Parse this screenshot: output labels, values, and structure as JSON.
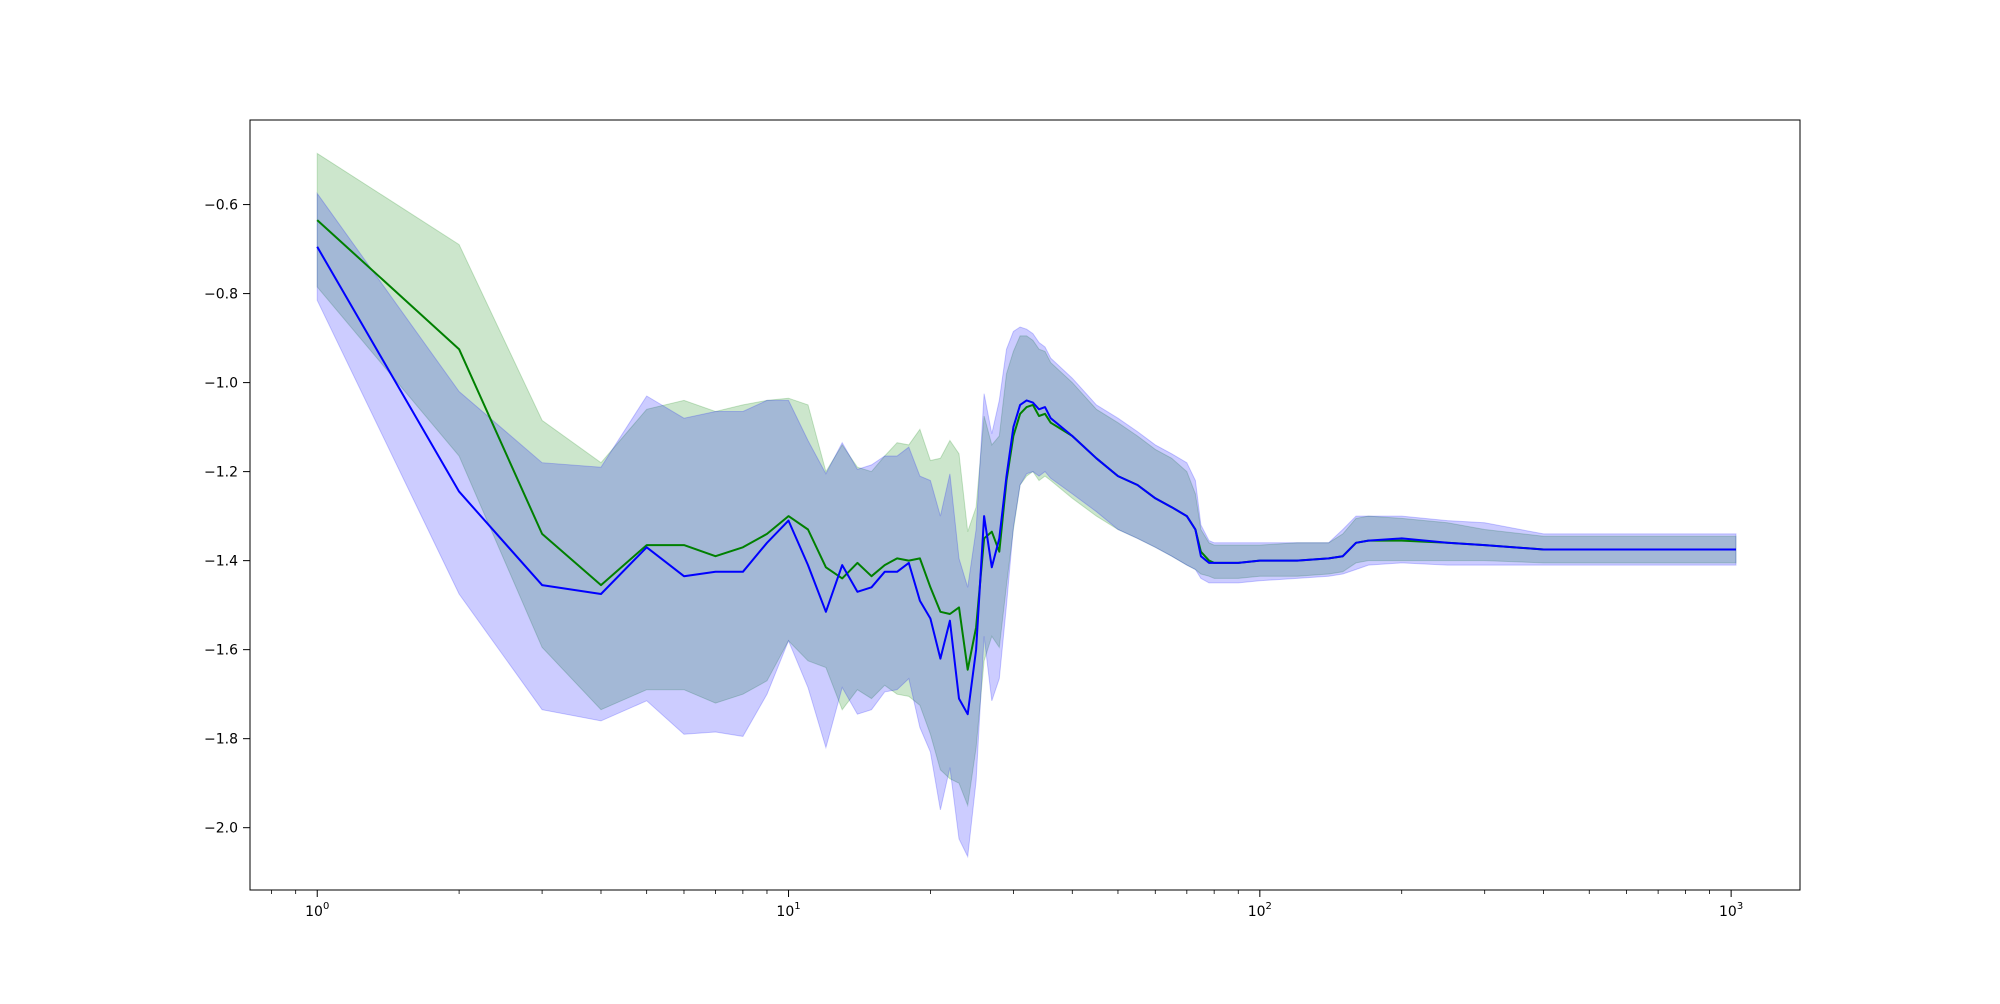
{
  "chart_data": {
    "type": "line",
    "xscale": "log",
    "xlim": [
      0.72,
      1400
    ],
    "ylim": [
      -2.14,
      -0.41
    ],
    "xticks": [
      {
        "value": 1,
        "base": "10",
        "exp": "0"
      },
      {
        "value": 10,
        "base": "10",
        "exp": "1"
      },
      {
        "value": 100,
        "base": "10",
        "exp": "2"
      },
      {
        "value": 1000,
        "base": "10",
        "exp": "3"
      }
    ],
    "yticks": [
      {
        "value": -0.6,
        "label": "−0.6"
      },
      {
        "value": -0.8,
        "label": "−0.8"
      },
      {
        "value": -1.0,
        "label": "−1.0"
      },
      {
        "value": -1.2,
        "label": "−1.2"
      },
      {
        "value": -1.4,
        "label": "−1.4"
      },
      {
        "value": -1.6,
        "label": "−1.6"
      },
      {
        "value": -1.8,
        "label": "−1.8"
      },
      {
        "value": -2.0,
        "label": "−2.0"
      }
    ],
    "grid": false,
    "legend": false,
    "series": [
      {
        "color": "#008000",
        "band_color": "#008000",
        "band_opacity": 0.2,
        "x": [
          1,
          2,
          3,
          4,
          5,
          6,
          7,
          8,
          9,
          10,
          11,
          12,
          13,
          14,
          15,
          16,
          17,
          18,
          19,
          20,
          21,
          22,
          23,
          24,
          25,
          26,
          27,
          28,
          29,
          30,
          31,
          32,
          33,
          34,
          35,
          36,
          40,
          45,
          50,
          55,
          60,
          65,
          70,
          73,
          75,
          78,
          80,
          90,
          100,
          120,
          140,
          150,
          160,
          170,
          200,
          250,
          300,
          400,
          500,
          600,
          1024
        ],
        "mean": [
          -0.635,
          -0.925,
          -1.34,
          -1.455,
          -1.365,
          -1.365,
          -1.39,
          -1.37,
          -1.34,
          -1.3,
          -1.33,
          -1.415,
          -1.44,
          -1.405,
          -1.435,
          -1.41,
          -1.395,
          -1.4,
          -1.395,
          -1.46,
          -1.515,
          -1.52,
          -1.505,
          -1.645,
          -1.55,
          -1.35,
          -1.335,
          -1.38,
          -1.22,
          -1.12,
          -1.07,
          -1.055,
          -1.05,
          -1.075,
          -1.07,
          -1.09,
          -1.12,
          -1.17,
          -1.21,
          -1.23,
          -1.26,
          -1.28,
          -1.3,
          -1.33,
          -1.38,
          -1.4,
          -1.405,
          -1.405,
          -1.4,
          -1.4,
          -1.395,
          -1.39,
          -1.36,
          -1.355,
          -1.355,
          -1.36,
          -1.365,
          -1.375,
          -1.375,
          -1.375,
          -1.375
        ],
        "upper": [
          -0.485,
          -0.69,
          -1.085,
          -1.18,
          -1.06,
          -1.04,
          -1.065,
          -1.05,
          -1.04,
          -1.035,
          -1.05,
          -1.2,
          -1.14,
          -1.19,
          -1.2,
          -1.165,
          -1.135,
          -1.14,
          -1.105,
          -1.175,
          -1.17,
          -1.13,
          -1.16,
          -1.335,
          -1.28,
          -1.075,
          -1.14,
          -1.12,
          -0.98,
          -0.93,
          -0.895,
          -0.895,
          -0.905,
          -0.925,
          -0.93,
          -0.955,
          -1.0,
          -1.06,
          -1.09,
          -1.12,
          -1.15,
          -1.17,
          -1.2,
          -1.25,
          -1.33,
          -1.36,
          -1.365,
          -1.365,
          -1.365,
          -1.36,
          -1.36,
          -1.34,
          -1.305,
          -1.3,
          -1.305,
          -1.315,
          -1.33,
          -1.345,
          -1.345,
          -1.345,
          -1.345
        ],
        "lower": [
          -0.785,
          -1.165,
          -1.595,
          -1.735,
          -1.69,
          -1.69,
          -1.72,
          -1.7,
          -1.67,
          -1.58,
          -1.625,
          -1.64,
          -1.735,
          -1.69,
          -1.71,
          -1.68,
          -1.7,
          -1.705,
          -1.725,
          -1.79,
          -1.87,
          -1.89,
          -1.9,
          -1.95,
          -1.82,
          -1.625,
          -1.57,
          -1.595,
          -1.455,
          -1.33,
          -1.23,
          -1.21,
          -1.2,
          -1.22,
          -1.21,
          -1.22,
          -1.26,
          -1.3,
          -1.33,
          -1.35,
          -1.37,
          -1.39,
          -1.41,
          -1.42,
          -1.43,
          -1.435,
          -1.44,
          -1.44,
          -1.435,
          -1.435,
          -1.43,
          -1.425,
          -1.405,
          -1.4,
          -1.4,
          -1.4,
          -1.4,
          -1.405,
          -1.405,
          -1.405,
          -1.405
        ]
      },
      {
        "color": "#0000ff",
        "band_color": "#0000ff",
        "band_opacity": 0.2,
        "x": [
          1,
          2,
          3,
          4,
          5,
          6,
          7,
          8,
          9,
          10,
          11,
          12,
          13,
          14,
          15,
          16,
          17,
          18,
          19,
          20,
          21,
          22,
          23,
          24,
          25,
          26,
          27,
          28,
          29,
          30,
          31,
          32,
          33,
          34,
          35,
          36,
          40,
          45,
          50,
          55,
          60,
          65,
          70,
          73,
          75,
          78,
          80,
          90,
          100,
          120,
          140,
          150,
          160,
          170,
          200,
          250,
          300,
          400,
          500,
          600,
          1024
        ],
        "mean": [
          -0.695,
          -1.245,
          -1.455,
          -1.475,
          -1.37,
          -1.435,
          -1.425,
          -1.425,
          -1.36,
          -1.31,
          -1.41,
          -1.515,
          -1.41,
          -1.47,
          -1.46,
          -1.425,
          -1.425,
          -1.405,
          -1.49,
          -1.53,
          -1.62,
          -1.535,
          -1.71,
          -1.745,
          -1.6,
          -1.3,
          -1.415,
          -1.35,
          -1.21,
          -1.1,
          -1.05,
          -1.04,
          -1.045,
          -1.06,
          -1.055,
          -1.08,
          -1.12,
          -1.17,
          -1.21,
          -1.23,
          -1.26,
          -1.28,
          -1.3,
          -1.33,
          -1.39,
          -1.405,
          -1.405,
          -1.405,
          -1.4,
          -1.4,
          -1.395,
          -1.39,
          -1.36,
          -1.355,
          -1.35,
          -1.36,
          -1.365,
          -1.375,
          -1.375,
          -1.375,
          -1.375
        ],
        "upper": [
          -0.575,
          -1.02,
          -1.18,
          -1.19,
          -1.03,
          -1.08,
          -1.065,
          -1.065,
          -1.04,
          -1.04,
          -1.13,
          -1.205,
          -1.135,
          -1.195,
          -1.185,
          -1.165,
          -1.165,
          -1.145,
          -1.21,
          -1.22,
          -1.3,
          -1.205,
          -1.395,
          -1.46,
          -1.33,
          -1.025,
          -1.115,
          -1.04,
          -0.925,
          -0.885,
          -0.875,
          -0.88,
          -0.89,
          -0.91,
          -0.92,
          -0.945,
          -0.99,
          -1.05,
          -1.08,
          -1.11,
          -1.14,
          -1.16,
          -1.18,
          -1.22,
          -1.32,
          -1.355,
          -1.36,
          -1.36,
          -1.36,
          -1.36,
          -1.36,
          -1.33,
          -1.3,
          -1.3,
          -1.3,
          -1.31,
          -1.315,
          -1.34,
          -1.34,
          -1.34,
          -1.34
        ],
        "lower": [
          -0.815,
          -1.475,
          -1.735,
          -1.76,
          -1.715,
          -1.79,
          -1.785,
          -1.795,
          -1.7,
          -1.58,
          -1.685,
          -1.82,
          -1.685,
          -1.745,
          -1.735,
          -1.695,
          -1.69,
          -1.665,
          -1.775,
          -1.83,
          -1.96,
          -1.865,
          -2.025,
          -2.065,
          -1.895,
          -1.57,
          -1.715,
          -1.665,
          -1.5,
          -1.325,
          -1.23,
          -1.205,
          -1.2,
          -1.21,
          -1.2,
          -1.215,
          -1.25,
          -1.29,
          -1.33,
          -1.35,
          -1.37,
          -1.39,
          -1.41,
          -1.42,
          -1.44,
          -1.45,
          -1.45,
          -1.45,
          -1.445,
          -1.44,
          -1.435,
          -1.43,
          -1.42,
          -1.41,
          -1.405,
          -1.41,
          -1.41,
          -1.41,
          -1.41,
          -1.41,
          -1.41
        ]
      }
    ]
  }
}
